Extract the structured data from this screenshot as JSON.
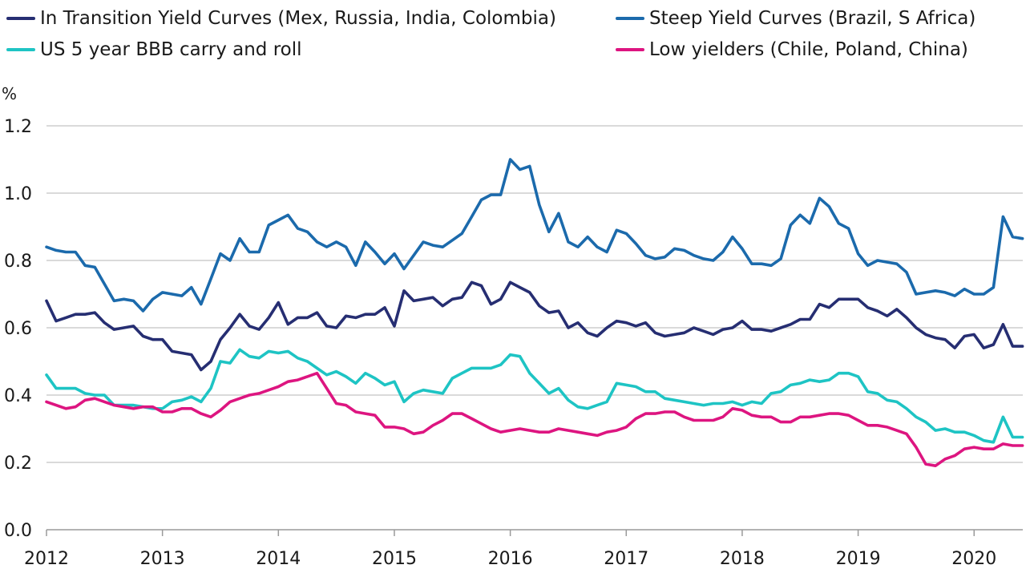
{
  "chart_data": {
    "type": "line",
    "ylabel": "%",
    "ylim": [
      0,
      1.2
    ],
    "yticks": [
      "0.0",
      "0.2",
      "0.4",
      "0.6",
      "0.8",
      "1.0",
      "1.2"
    ],
    "xlim": [
      2012,
      2020.42
    ],
    "xticks": [
      "2012",
      "2013",
      "2014",
      "2015",
      "2016",
      "2017",
      "2018",
      "2019",
      "2020"
    ],
    "grid": "horizontal",
    "legend_position": "top",
    "x": [
      2012.0,
      2012.083,
      2012.167,
      2012.25,
      2012.333,
      2012.417,
      2012.5,
      2012.583,
      2012.667,
      2012.75,
      2012.833,
      2012.917,
      2013.0,
      2013.083,
      2013.167,
      2013.25,
      2013.333,
      2013.417,
      2013.5,
      2013.583,
      2013.667,
      2013.75,
      2013.833,
      2013.917,
      2014.0,
      2014.083,
      2014.167,
      2014.25,
      2014.333,
      2014.417,
      2014.5,
      2014.583,
      2014.667,
      2014.75,
      2014.833,
      2014.917,
      2015.0,
      2015.083,
      2015.167,
      2015.25,
      2015.333,
      2015.417,
      2015.5,
      2015.583,
      2015.667,
      2015.75,
      2015.833,
      2015.917,
      2016.0,
      2016.083,
      2016.167,
      2016.25,
      2016.333,
      2016.417,
      2016.5,
      2016.583,
      2016.667,
      2016.75,
      2016.833,
      2016.917,
      2017.0,
      2017.083,
      2017.167,
      2017.25,
      2017.333,
      2017.417,
      2017.5,
      2017.583,
      2017.667,
      2017.75,
      2017.833,
      2017.917,
      2018.0,
      2018.083,
      2018.167,
      2018.25,
      2018.333,
      2018.417,
      2018.5,
      2018.583,
      2018.667,
      2018.75,
      2018.833,
      2018.917,
      2019.0,
      2019.083,
      2019.167,
      2019.25,
      2019.333,
      2019.417,
      2019.5,
      2019.583,
      2019.667,
      2019.75,
      2019.833,
      2019.917,
      2020.0,
      2020.083,
      2020.167,
      2020.25,
      2020.333,
      2020.417
    ],
    "series": [
      {
        "name": "In Transition Yield Curves (Mex, Russia, India, Colombia)",
        "color": "#262e72",
        "values": [
          0.68,
          0.62,
          0.63,
          0.64,
          0.64,
          0.645,
          0.615,
          0.595,
          0.6,
          0.605,
          0.575,
          0.565,
          0.565,
          0.53,
          0.525,
          0.52,
          0.475,
          0.5,
          0.565,
          0.6,
          0.64,
          0.605,
          0.595,
          0.63,
          0.675,
          0.61,
          0.63,
          0.63,
          0.645,
          0.605,
          0.6,
          0.635,
          0.63,
          0.64,
          0.64,
          0.66,
          0.605,
          0.71,
          0.68,
          0.685,
          0.69,
          0.665,
          0.685,
          0.69,
          0.735,
          0.725,
          0.67,
          0.685,
          0.735,
          0.72,
          0.705,
          0.665,
          0.645,
          0.65,
          0.6,
          0.615,
          0.585,
          0.575,
          0.6,
          0.62,
          0.615,
          0.605,
          0.615,
          0.585,
          0.575,
          0.58,
          0.585,
          0.6,
          0.59,
          0.58,
          0.595,
          0.6,
          0.62,
          0.595,
          0.595,
          0.59,
          0.6,
          0.61,
          0.625,
          0.625,
          0.67,
          0.66,
          0.685,
          0.685,
          0.685,
          0.66,
          0.65,
          0.635,
          0.655,
          0.63,
          0.6,
          0.58,
          0.57,
          0.565,
          0.54,
          0.575,
          0.58,
          0.54,
          0.55,
          0.61,
          0.545,
          0.545
        ]
      },
      {
        "name": "Steep Yield Curves (Brazil, S Africa)",
        "color": "#1b6aac",
        "values": [
          0.84,
          0.83,
          0.825,
          0.825,
          0.785,
          0.78,
          0.73,
          0.68,
          0.685,
          0.68,
          0.65,
          0.685,
          0.705,
          0.7,
          0.695,
          0.72,
          0.67,
          0.745,
          0.82,
          0.8,
          0.865,
          0.825,
          0.825,
          0.905,
          0.92,
          0.935,
          0.895,
          0.885,
          0.855,
          0.84,
          0.855,
          0.84,
          0.785,
          0.855,
          0.825,
          0.79,
          0.82,
          0.775,
          0.815,
          0.855,
          0.845,
          0.84,
          0.86,
          0.88,
          0.93,
          0.98,
          0.995,
          0.995,
          1.1,
          1.07,
          1.08,
          0.965,
          0.885,
          0.94,
          0.855,
          0.84,
          0.87,
          0.84,
          0.825,
          0.89,
          0.88,
          0.85,
          0.815,
          0.805,
          0.81,
          0.835,
          0.83,
          0.815,
          0.805,
          0.8,
          0.825,
          0.87,
          0.835,
          0.79,
          0.79,
          0.785,
          0.805,
          0.905,
          0.935,
          0.91,
          0.985,
          0.96,
          0.91,
          0.895,
          0.82,
          0.785,
          0.8,
          0.795,
          0.79,
          0.765,
          0.7,
          0.705,
          0.71,
          0.705,
          0.695,
          0.715,
          0.7,
          0.7,
          0.72,
          0.93,
          0.87,
          0.865
        ]
      },
      {
        "name": "US 5 year BBB carry and roll",
        "color": "#1ec4c4",
        "values": [
          0.46,
          0.42,
          0.42,
          0.42,
          0.405,
          0.4,
          0.4,
          0.37,
          0.37,
          0.37,
          0.365,
          0.36,
          0.36,
          0.38,
          0.385,
          0.395,
          0.38,
          0.42,
          0.5,
          0.495,
          0.535,
          0.515,
          0.51,
          0.53,
          0.525,
          0.53,
          0.51,
          0.5,
          0.48,
          0.46,
          0.47,
          0.455,
          0.435,
          0.465,
          0.45,
          0.43,
          0.44,
          0.38,
          0.405,
          0.415,
          0.41,
          0.405,
          0.45,
          0.465,
          0.48,
          0.48,
          0.48,
          0.49,
          0.52,
          0.515,
          0.465,
          0.435,
          0.405,
          0.42,
          0.385,
          0.365,
          0.36,
          0.37,
          0.38,
          0.435,
          0.43,
          0.425,
          0.41,
          0.41,
          0.39,
          0.385,
          0.38,
          0.375,
          0.37,
          0.375,
          0.375,
          0.38,
          0.37,
          0.38,
          0.375,
          0.405,
          0.41,
          0.43,
          0.435,
          0.445,
          0.44,
          0.445,
          0.465,
          0.465,
          0.455,
          0.41,
          0.405,
          0.385,
          0.38,
          0.36,
          0.335,
          0.32,
          0.295,
          0.3,
          0.29,
          0.29,
          0.28,
          0.265,
          0.26,
          0.335,
          0.275,
          0.275
        ]
      },
      {
        "name": "Low yielders (Chile, Poland, China)",
        "color": "#dd1580",
        "values": [
          0.38,
          0.37,
          0.36,
          0.365,
          0.385,
          0.39,
          0.38,
          0.37,
          0.365,
          0.36,
          0.365,
          0.365,
          0.35,
          0.35,
          0.36,
          0.36,
          0.345,
          0.335,
          0.355,
          0.38,
          0.39,
          0.4,
          0.405,
          0.415,
          0.425,
          0.44,
          0.445,
          0.455,
          0.465,
          0.42,
          0.375,
          0.37,
          0.35,
          0.345,
          0.34,
          0.305,
          0.305,
          0.3,
          0.285,
          0.29,
          0.31,
          0.325,
          0.345,
          0.345,
          0.33,
          0.315,
          0.3,
          0.29,
          0.295,
          0.3,
          0.295,
          0.29,
          0.29,
          0.3,
          0.295,
          0.29,
          0.285,
          0.28,
          0.29,
          0.295,
          0.305,
          0.33,
          0.345,
          0.345,
          0.35,
          0.35,
          0.335,
          0.325,
          0.325,
          0.325,
          0.335,
          0.36,
          0.355,
          0.34,
          0.335,
          0.335,
          0.32,
          0.32,
          0.335,
          0.335,
          0.34,
          0.345,
          0.345,
          0.34,
          0.325,
          0.31,
          0.31,
          0.305,
          0.295,
          0.285,
          0.245,
          0.195,
          0.19,
          0.21,
          0.22,
          0.24,
          0.245,
          0.24,
          0.24,
          0.255,
          0.25,
          0.25
        ]
      }
    ]
  }
}
